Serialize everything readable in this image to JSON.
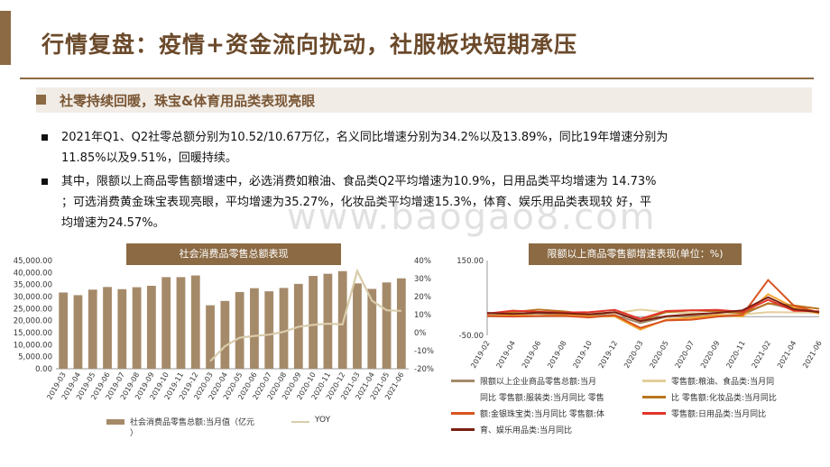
{
  "title": "行情复盘：疫情+资金流向扰动，社服板块短期承压",
  "subheading": "社零持续回暖，珠宝&体育用品类表现亮眼",
  "bullets": [
    {
      "line1": "2021年Q1、Q2社零总额分别为10.52/10.67万亿，名义同比增速分别为34.2%以及13.89%，同比19年增速分别为",
      "line2": "11.85%以及9.51%，回暖持续。"
    },
    {
      "line1": "其中，限额以上商品零售额增速中，必选消费如粮油、食品类Q2平均增速为10.9%，日用品类平均增速为 14.73%",
      "line2": "；可选消费黄金珠宝表现亮眼，平均增速为35.27%，化妆品类平均增速15.3%，体育、娱乐用品类表现较 好，平",
      "line3": "均增速为24.57%。"
    }
  ],
  "watermark": "www.baogao8.com",
  "left_chart_title": "社会消费品零售总额表现",
  "right_chart_title": "限额以上商品零售额增速表现(单位：%)",
  "colors": {
    "accent": "#8b6a44",
    "bar": "#a58a6a",
    "yoy": "#d9ccaa"
  },
  "chart_data": [
    {
      "type": "bar",
      "categories": [
        "2019-03",
        "2019-04",
        "2019-05",
        "2019-06",
        "2019-07",
        "2019-08",
        "2019-09",
        "2019-10",
        "2019-11",
        "2019-12",
        "2020-03",
        "2020-04",
        "2020-05",
        "2020-06",
        "2020-07",
        "2020-08",
        "2020-09",
        "2020-10",
        "2020-11",
        "2020-12",
        "2021-03",
        "2021-04",
        "2021-05",
        "2021-06"
      ],
      "left_ticks": [
        "45,000.00",
        "40,000.00",
        "35,000.00",
        "30,000.00",
        "25,000.00",
        "20,000.00",
        "15,000.00",
        "10,000.00",
        "5,000.00",
        "0.00"
      ],
      "right_ticks": [
        "40%",
        "30%",
        "20%",
        "10%",
        "0%",
        "-10%",
        "-20%"
      ],
      "ylim": [
        0,
        45000
      ],
      "y2lim": [
        -20,
        40
      ],
      "series": [
        {
          "name": "社会消费品零售总额:当月值（亿元）",
          "kind": "bar",
          "values": [
            31700,
            30600,
            32900,
            34000,
            33100,
            33900,
            34500,
            38100,
            38100,
            38800,
            26400,
            28200,
            31900,
            33500,
            32200,
            33600,
            35300,
            38600,
            39500,
            40600,
            35500,
            33200,
            35900,
            37600
          ]
        },
        {
          "name": "YOY",
          "kind": "line",
          "values": [
            null,
            null,
            null,
            null,
            null,
            null,
            null,
            null,
            null,
            null,
            -15.8,
            -7.5,
            -2.8,
            -1.8,
            -1.1,
            0.5,
            3.3,
            4.3,
            5.0,
            4.6,
            34.2,
            17.7,
            12.4,
            12.1
          ]
        }
      ]
    },
    {
      "type": "line",
      "categories": [
        "2019-02",
        "2019-04",
        "2019-06",
        "2019-08",
        "2019-10",
        "2019-12",
        "2020-03",
        "2020-05",
        "2020-07",
        "2020-09",
        "2020-11",
        "2021-02",
        "2021-04",
        "2021-06"
      ],
      "y_ticks": [
        "150.00",
        "-50.00"
      ],
      "ylim": [
        -50,
        150
      ],
      "series": [
        {
          "name": "限额以上企业商品零售总额:当月同比",
          "color": "#a58a6a",
          "values": [
            3.5,
            5.8,
            8.0,
            6.0,
            5.0,
            4.2,
            -17.0,
            -0.5,
            1.8,
            3.5,
            5.5,
            36.0,
            20.0,
            13.0
          ]
        },
        {
          "name": "零售额:粮油、食品类:当月同比",
          "color": "#e3cf9c",
          "values": [
            8.0,
            10.0,
            9.5,
            12.0,
            10.0,
            9.5,
            19.0,
            12.0,
            9.5,
            7.0,
            6.0,
            12.0,
            11.5,
            10.5
          ]
        },
        {
          "name": "零售额:服装类:当月同比",
          "color": "#f1a531",
          "values": [
            2.0,
            3.5,
            2.0,
            5.0,
            1.0,
            0.5,
            -34.8,
            -8.0,
            -3.0,
            4.0,
            0.5,
            60.0,
            25.0,
            8.0
          ]
        },
        {
          "name": "零售额:化妆品类:当月同比",
          "color": "#b9751f",
          "values": [
            9.0,
            12.0,
            19.0,
            14.0,
            6.5,
            12.0,
            -11.0,
            12.0,
            17.0,
            14.0,
            9.0,
            35.0,
            30.0,
            21.0
          ]
        },
        {
          "name": "零售额:金银珠宝类:当月同比",
          "color": "#d9531e",
          "values": [
            1.5,
            0.4,
            1.5,
            2.0,
            -2.0,
            4.0,
            -30.0,
            -10.0,
            -8.0,
            0.0,
            5.0,
            98.0,
            30.0,
            11.0
          ]
        },
        {
          "name": "零售额:日用品类:当月同比",
          "color": "#e2342a",
          "values": [
            8.0,
            16.0,
            13.0,
            11.0,
            12.0,
            18.0,
            -6.0,
            15.0,
            17.0,
            18.0,
            13.0,
            45.0,
            16.0,
            14.0
          ]
        },
        {
          "name": "零售额:体育、娱乐用品类:当月同比",
          "color": "#7a1f12",
          "values": [
            10.0,
            7.0,
            11.0,
            9.0,
            6.0,
            12.0,
            -12.0,
            1.0,
            6.0,
            10.0,
            17.0,
            52.0,
            20.0,
            12.0
          ]
        }
      ]
    }
  ],
  "legend_left": {
    "bar_label": "社会消费品零售总额:当月值（亿元",
    "bar_label_tail": "）",
    "line_label": "YOY"
  },
  "legend_right": [
    {
      "text": "限额以上企业商品零售总额:当月",
      "color": "#a58a6a"
    },
    {
      "text": "零售额:粮油、食品类:当月同",
      "color": "#e3cf9c"
    },
    {
      "text": "同比    零售额:服装类:当月同比    零售",
      "color": null
    },
    {
      "text": "比    零售额:化妆品类:当月同比",
      "color": null
    },
    {
      "text": "额:金银珠宝类:当月同比    零售额:体",
      "color": "#d9531e"
    },
    {
      "text": "零售额:日用品类:当月同比",
      "color": "#e2342a"
    },
    {
      "text": "育、娱乐用品类:当月同比",
      "color": "#7a1f12"
    }
  ]
}
